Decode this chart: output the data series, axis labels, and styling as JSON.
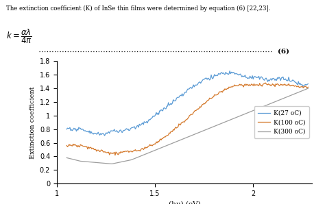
{
  "title_text": "The extinction coefficient (K) of InSe thin films were determined by equation (6) [22,23].",
  "equation_label": "(6)",
  "xlabel": "(hu) (eV)",
  "ylabel": "Extinction coefficient",
  "xlim": [
    1.0,
    2.3
  ],
  "ylim": [
    0,
    1.8
  ],
  "yticks": [
    0,
    0.2,
    0.4,
    0.6,
    0.8,
    1.0,
    1.2,
    1.4,
    1.6,
    1.8
  ],
  "xtick_vals": [
    1.0,
    1.5,
    2.0
  ],
  "xtick_labels": [
    "1",
    "1.5",
    "2"
  ],
  "legend_labels": [
    "K(27 oC)",
    "K(100 oC)",
    "K(300 oC)"
  ],
  "colors": [
    "#5b9bd5",
    "#d4782a",
    "#9e9e9e"
  ],
  "background_color": "#ffffff",
  "fig_width": 4.74,
  "fig_height": 2.98,
  "dpi": 100
}
